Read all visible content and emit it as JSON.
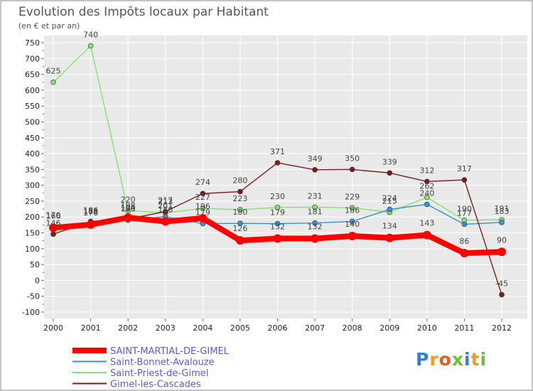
{
  "chart_data": {
    "type": "line",
    "title": "Evolution des Impôts locaux par Habitant",
    "subtitle": "(en € et par an)",
    "x": [
      "2000",
      "2001",
      "2002",
      "2003",
      "2004",
      "2005",
      "2006",
      "2007",
      "2008",
      "2009",
      "2010",
      "2011",
      "2012"
    ],
    "yticks": [
      750,
      700,
      650,
      600,
      550,
      500,
      450,
      400,
      350,
      300,
      250,
      200,
      150,
      100,
      50,
      0,
      -50,
      -100
    ],
    "ylim": [
      -100,
      750
    ],
    "grid": true,
    "legend_position": "bottom-left",
    "series": [
      {
        "name": "SAINT-MARTIAL-DE-GIMEL",
        "color": "#ff0000",
        "values": [
          166,
          176,
          198,
          186,
          196,
          126,
          132,
          132,
          140,
          134,
          143,
          86,
          90
        ],
        "labels": [
          "166",
          "176",
          "198",
          "186",
          "196",
          "126",
          "132",
          "132",
          "140",
          "134",
          "143",
          "86",
          "90"
        ]
      },
      {
        "name": "Saint-Bonnet-Avalouze",
        "color": "#3d8fd1",
        "values": [
          170,
          183,
          190,
          201,
          179,
          180,
          179,
          181,
          186,
          224,
          240,
          177,
          183
        ],
        "labels": [
          "170",
          "183",
          "190",
          "201",
          "179",
          "180",
          "179",
          "181",
          "186",
          "224",
          "240",
          "177",
          "183"
        ]
      },
      {
        "name": "Saint-Priest-de-Gimel",
        "color": "#88e070",
        "values": [
          625,
          740,
          220,
          213,
          227,
          223,
          230,
          231,
          229,
          215,
          262,
          190,
          191
        ],
        "labels": [
          "625",
          "740",
          "220",
          "213",
          "227",
          "223",
          "230",
          "231",
          "229",
          "215",
          "262",
          "190",
          "191"
        ]
      },
      {
        "name": "Gimel-les-Cascades",
        "color": "#7a1e1e",
        "values": [
          146,
          186,
          194,
          217,
          274,
          280,
          371,
          349,
          350,
          339,
          312,
          317,
          -45
        ],
        "labels": [
          "146",
          "186",
          "194",
          "217",
          "274",
          "280",
          "371",
          "349",
          "350",
          "339",
          "312",
          "317",
          "-45"
        ]
      }
    ]
  },
  "brand": {
    "logo_text": "Proxiti",
    "letters": [
      "P",
      "r",
      "o",
      "x",
      "i",
      "t",
      "i"
    ],
    "letter_colors": [
      "#2f7fd8",
      "#f29a1f",
      "#e85a1e",
      "#6bbf3a",
      "#2f7fd8",
      "#f29a1f",
      "#6bbf3a"
    ]
  }
}
